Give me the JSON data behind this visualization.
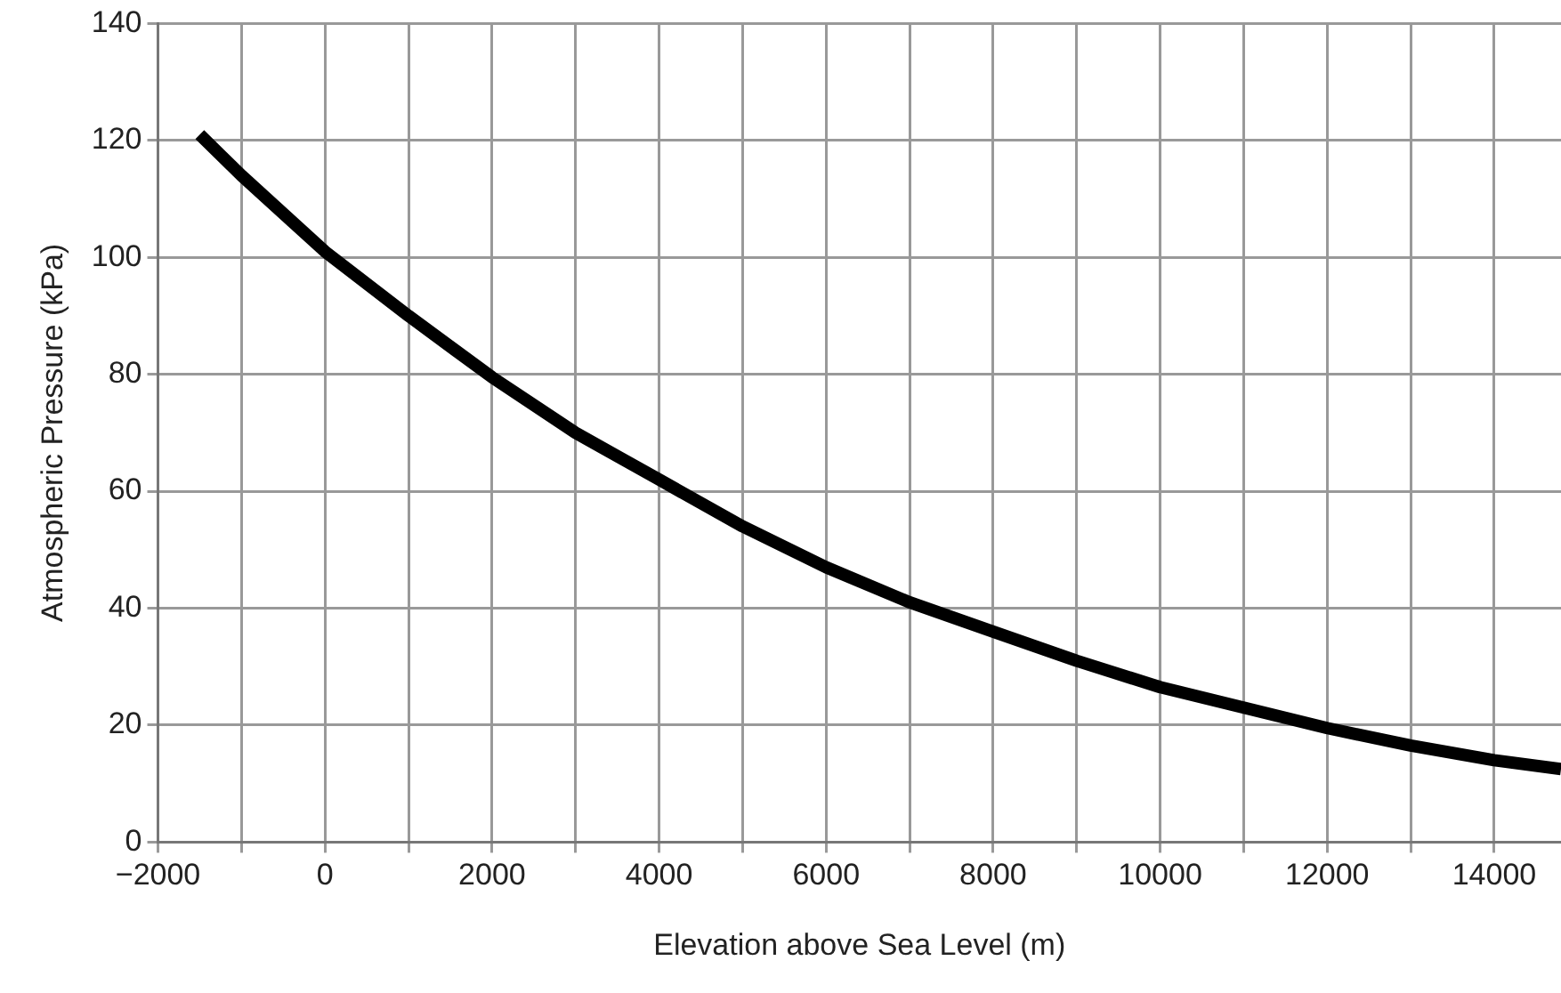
{
  "chart_data": {
    "type": "line",
    "xlabel": "Elevation above Sea Level (m)",
    "ylabel": "Atmospheric Pressure (kPa)",
    "x": [
      -1500,
      -1000,
      0,
      1000,
      2000,
      3000,
      4000,
      5000,
      6000,
      7000,
      8000,
      9000,
      10000,
      11000,
      12000,
      13000,
      14000,
      14800
    ],
    "series": [
      {
        "color": "#000000",
        "values": [
          121,
          114,
          101,
          90,
          79.5,
          70,
          62,
          54,
          47,
          41,
          36,
          31,
          26.5,
          23,
          19.5,
          16.5,
          14,
          12.5
        ]
      }
    ],
    "xlim": [
      -2000,
      14800
    ],
    "xticks": [
      {
        "value": -2000,
        "label": "−2000"
      },
      {
        "value": -1000,
        "label": null
      },
      0,
      {
        "value": 1000,
        "label": null
      },
      2000,
      {
        "value": 3000,
        "label": null
      },
      4000,
      {
        "value": 5000,
        "label": null
      },
      6000,
      {
        "value": 7000,
        "label": null
      },
      8000,
      {
        "value": 9000,
        "label": null
      },
      10000,
      {
        "value": 11000,
        "label": null
      },
      12000,
      {
        "value": 13000,
        "label": null
      },
      14000
    ],
    "ylim": [
      0,
      140
    ],
    "yticks": [
      0,
      20,
      40,
      60,
      80,
      100,
      120,
      140
    ],
    "grid": true,
    "legend": false,
    "marker": "none",
    "line_style": "solid"
  }
}
